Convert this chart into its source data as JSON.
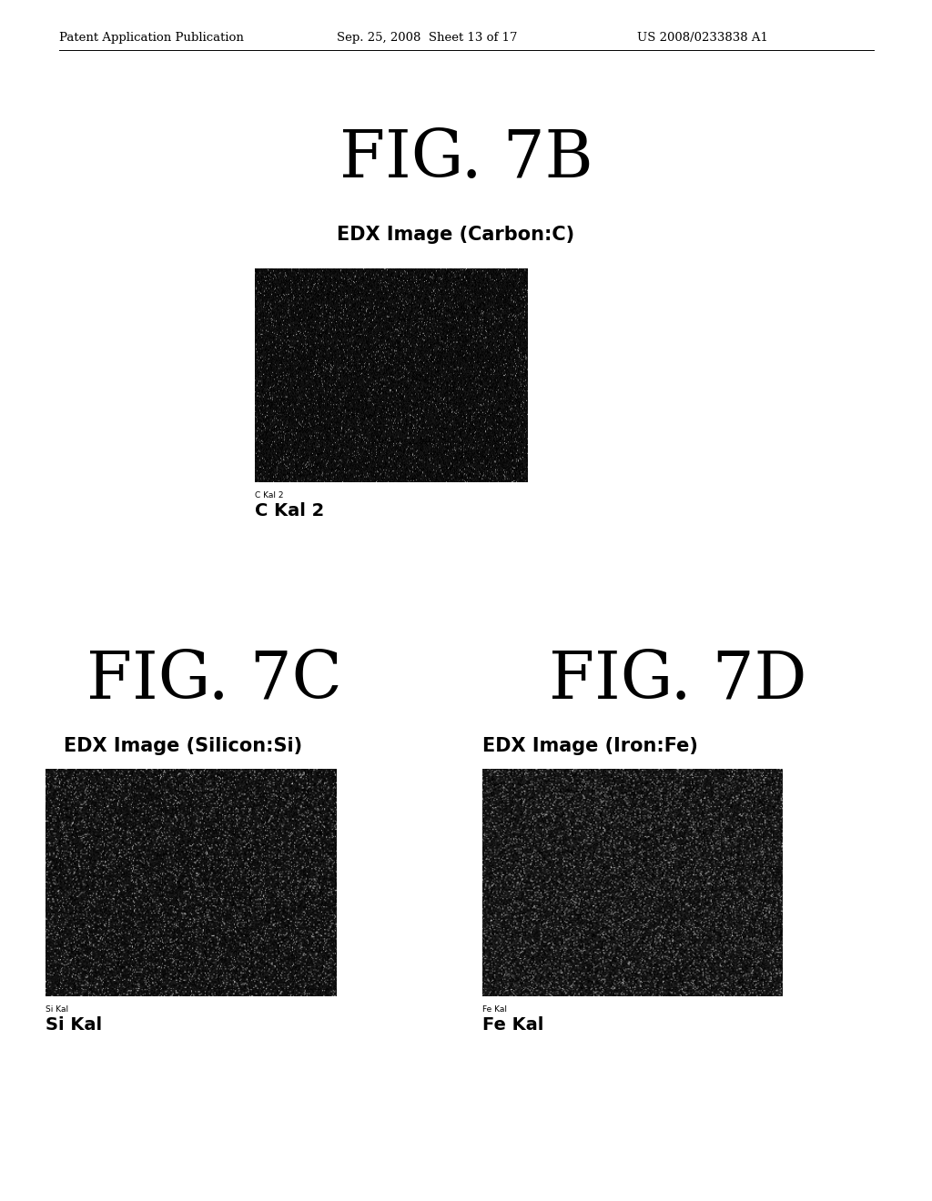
{
  "header_left": "Patent Application Publication",
  "header_mid": "Sep. 25, 2008  Sheet 13 of 17",
  "header_right": "US 2008/0233838 A1",
  "header_fontsize": 9.5,
  "fig7b_title": "FIG. 7B",
  "fig7b_title_fontsize": 52,
  "fig7b_subtitle": "EDX Image (Carbon:C)",
  "fig7b_subtitle_fontsize": 15,
  "fig7b_small_label": "C Kal 2",
  "fig7b_small_label_fontsize": 6.5,
  "fig7b_label": "C Kal 2",
  "fig7b_label_fontsize": 14,
  "fig7c_title": "FIG. 7C",
  "fig7c_title_fontsize": 52,
  "fig7c_subtitle": "EDX Image (Silicon:Si)",
  "fig7c_subtitle_fontsize": 15,
  "fig7c_small_label": "Si Kal",
  "fig7c_small_label_fontsize": 6.5,
  "fig7c_label": "Si Kal",
  "fig7c_label_fontsize": 14,
  "fig7d_title": "FIG. 7D",
  "fig7d_title_fontsize": 52,
  "fig7d_subtitle": "EDX Image (Iron:Fe)",
  "fig7d_subtitle_fontsize": 15,
  "fig7d_small_label": "Fe Kal",
  "fig7d_small_label_fontsize": 6.5,
  "fig7d_label": "Fe Kal",
  "fig7d_label_fontsize": 14,
  "noise_seed_b": 42,
  "noise_seed_c": 123,
  "noise_seed_d": 77,
  "bg_color": "#ffffff"
}
